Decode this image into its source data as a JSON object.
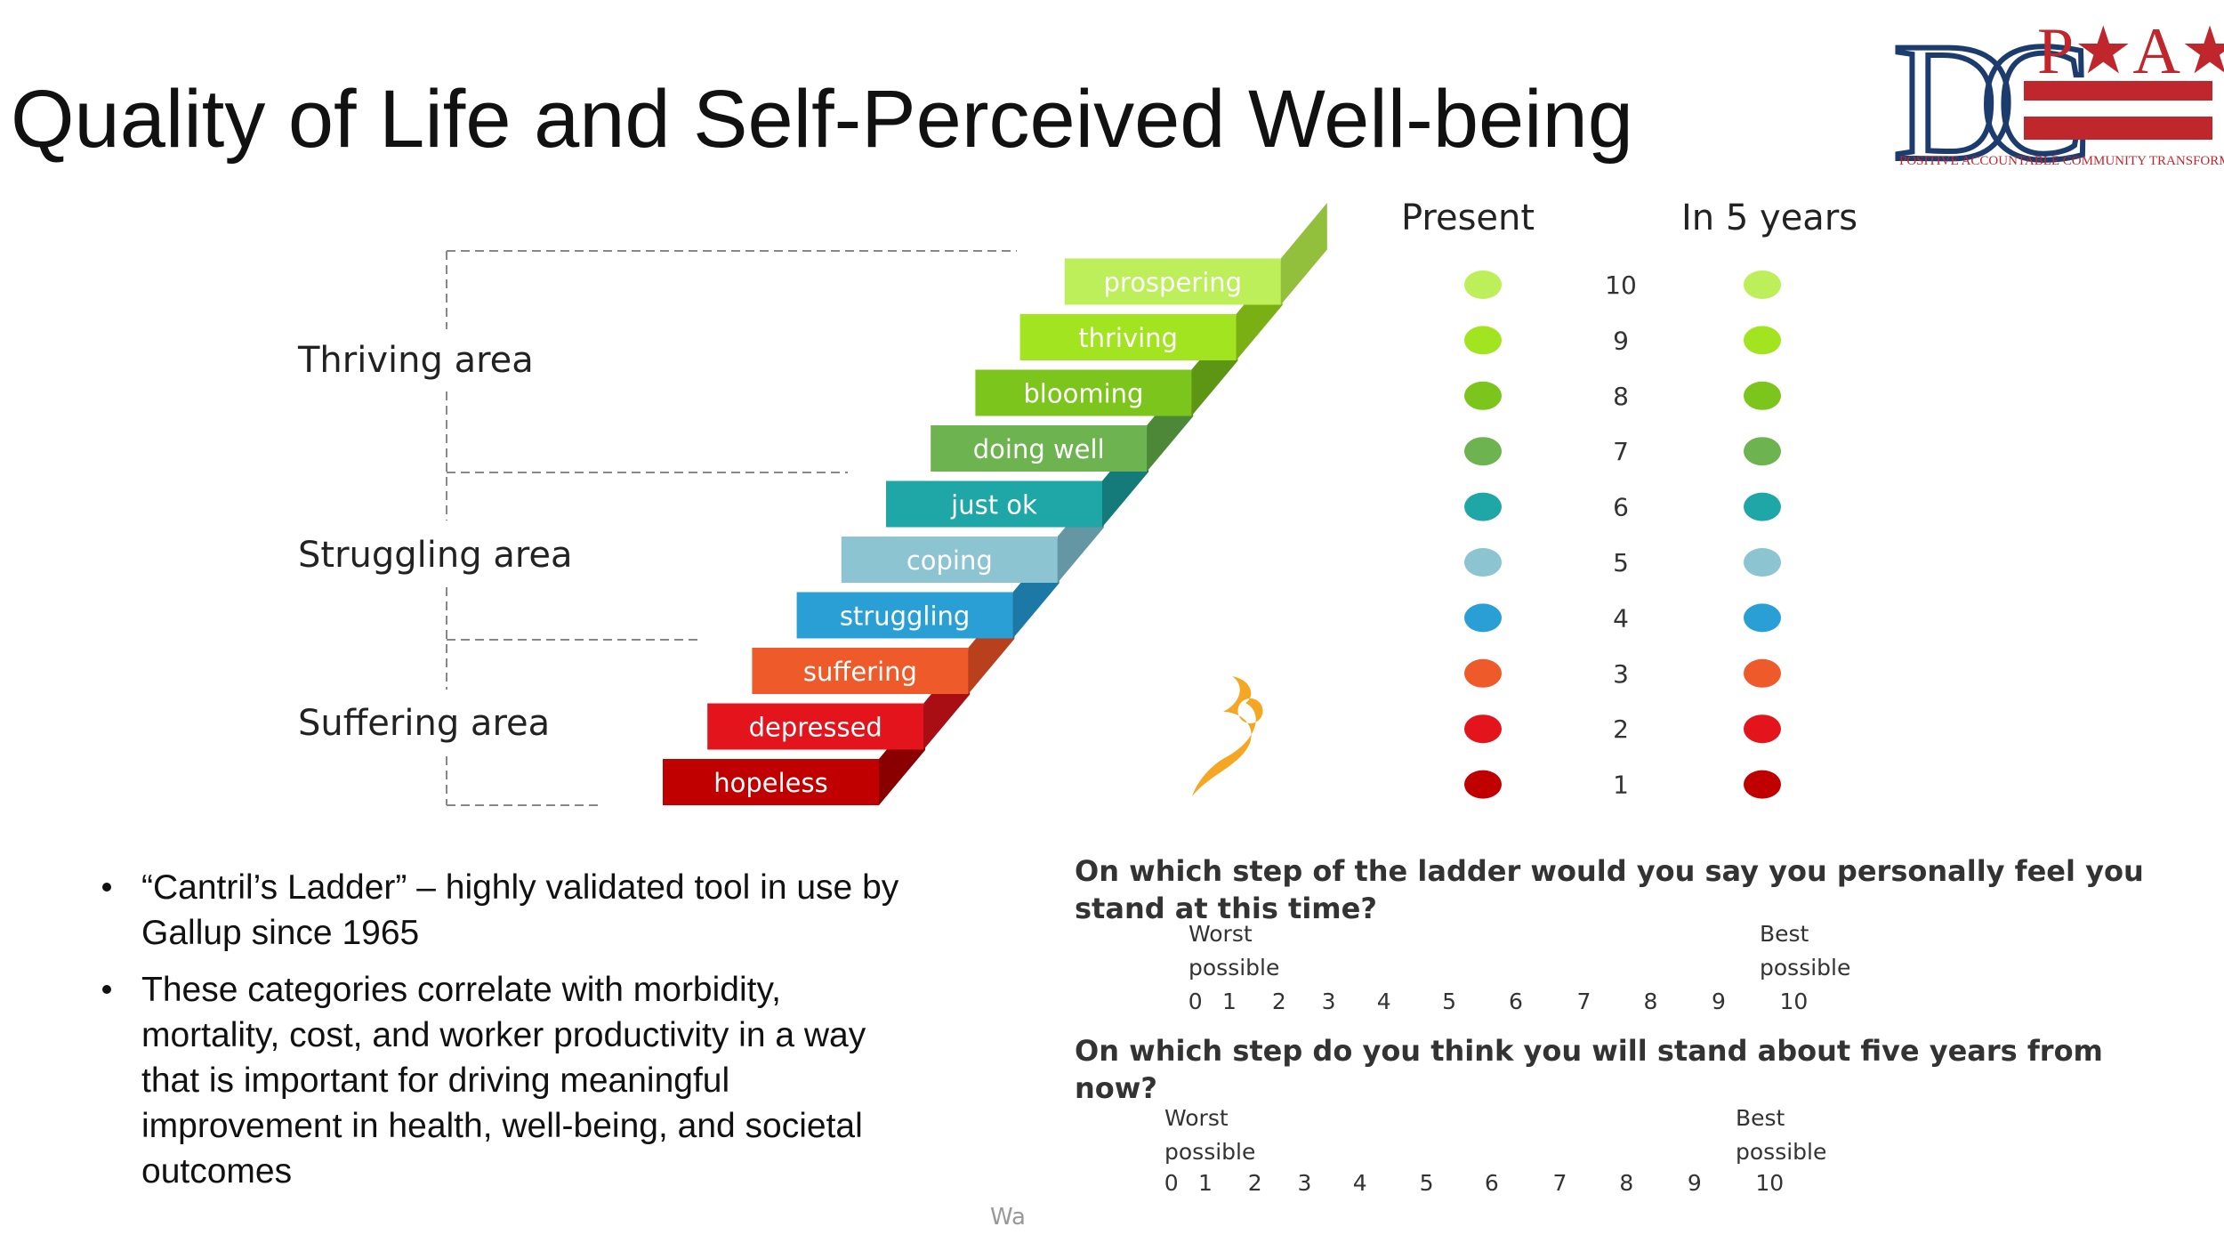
{
  "title": "Quality of Life and Self-Perceived Well-being",
  "logo": {
    "letters": "DC",
    "name": "P★A★CT",
    "tagline": "POSITIVE ACCOUNTABLE COMMUNITY TRANSFORMATION"
  },
  "ladder": {
    "steps": [
      "hopeless",
      "depressed",
      "suffering",
      "struggling",
      "coping",
      "just ok",
      "doing well",
      "blooming",
      "thriving",
      "prospering"
    ],
    "areas": [
      "Thriving area",
      "Struggling area",
      "Suffering area"
    ]
  },
  "scale": {
    "headers": [
      "Present",
      "In 5 years"
    ],
    "levels": [
      10,
      9,
      8,
      7,
      6,
      5,
      4,
      3,
      2,
      1
    ]
  },
  "bullets": [
    [
      "“Cantril’s Ladder” – highly validated tool in use by",
      "Gallup since 1965"
    ],
    [
      "These categories correlate with morbidity,",
      "mortality, cost, and worker productivity in a way",
      "that is important for driving meaningful",
      "improvement in health, well-being, and societal",
      "outcomes"
    ]
  ],
  "questions": [
    {
      "text": [
        "On which step of the ladder would you say you personally feel you",
        "stand at this time?"
      ],
      "worst": [
        "Worst",
        "possible"
      ],
      "best": [
        "Best",
        "possible"
      ],
      "scale": [
        0,
        1,
        2,
        3,
        4,
        5,
        6,
        7,
        8,
        9,
        10
      ]
    },
    {
      "text": [
        "On which step do you think you will stand about five years from",
        "now?"
      ],
      "worst": [
        "Worst",
        "possible"
      ],
      "best": [
        "Best",
        "possible"
      ],
      "scale": [
        0,
        1,
        2,
        3,
        4,
        5,
        6,
        7,
        8,
        9,
        10
      ]
    }
  ],
  "footer": "Wa"
}
